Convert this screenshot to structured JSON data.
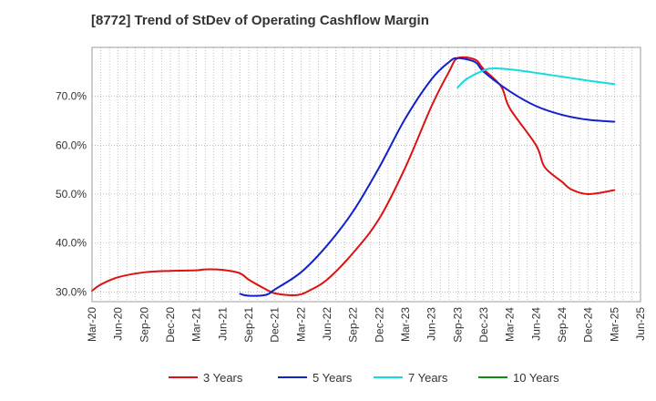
{
  "chart_data": {
    "type": "line",
    "title": "[8772]  Trend of StDev of Operating Cashflow Margin",
    "xlabel": "",
    "ylabel": "",
    "x_ticks": [
      "Mar-20",
      "Jun-20",
      "Sep-20",
      "Dec-20",
      "Mar-21",
      "Jun-21",
      "Sep-21",
      "Dec-21",
      "Mar-22",
      "Jun-22",
      "Sep-22",
      "Dec-22",
      "Mar-23",
      "Jun-23",
      "Sep-23",
      "Dec-23",
      "Mar-24",
      "Jun-24",
      "Sep-24",
      "Dec-24",
      "Mar-25",
      "Jun-25"
    ],
    "y_ticks": [
      "30.0%",
      "40.0%",
      "50.0%",
      "60.0%",
      "70.0%"
    ],
    "ylim": [
      28,
      80
    ],
    "grid": true,
    "legend_position": "bottom",
    "series": [
      {
        "name": "3 Years",
        "color": "#dd1111",
        "x": [
          "Mar-20",
          "Apr-20",
          "Jun-20",
          "Sep-20",
          "Dec-20",
          "Mar-21",
          "Apr-21",
          "Jun-21",
          "Aug-21",
          "Sep-21",
          "Nov-21",
          "Dec-21",
          "Feb-22",
          "Mar-22",
          "Apr-22",
          "Jun-22",
          "Sep-22",
          "Dec-22",
          "Mar-23",
          "Jun-23",
          "Aug-23",
          "Sep-23",
          "Nov-23",
          "Dec-23",
          "Feb-24",
          "Mar-24",
          "Jun-24",
          "Jul-24",
          "Sep-24",
          "Oct-24",
          "Dec-24",
          "Mar-25"
        ],
        "values": [
          30.2,
          31.5,
          33.0,
          34.0,
          34.3,
          34.4,
          34.6,
          34.5,
          33.8,
          32.5,
          30.5,
          29.7,
          29.3,
          29.5,
          30.3,
          32.5,
          38.0,
          45.0,
          55.5,
          68.0,
          75.0,
          77.8,
          77.5,
          75.5,
          72.0,
          67.5,
          60.0,
          55.5,
          52.5,
          51.0,
          50.0,
          50.8
        ]
      },
      {
        "name": "5 Years",
        "color": "#1122cc",
        "x": [
          "Aug-21",
          "Sep-21",
          "Nov-21",
          "Dec-21",
          "Mar-22",
          "Jun-22",
          "Sep-22",
          "Dec-22",
          "Mar-23",
          "Jun-23",
          "Aug-23",
          "Sep-23",
          "Nov-23",
          "Dec-23",
          "Mar-24",
          "Jun-24",
          "Sep-24",
          "Dec-24",
          "Mar-25"
        ],
        "values": [
          29.6,
          29.2,
          29.4,
          30.5,
          34.0,
          39.5,
          46.5,
          55.5,
          65.5,
          73.5,
          77.0,
          77.8,
          77.0,
          75.0,
          71.0,
          68.0,
          66.2,
          65.2,
          64.8
        ]
      },
      {
        "name": "7 Years",
        "color": "#11dddd",
        "x": [
          "Sep-23",
          "Oct-23",
          "Dec-23",
          "Jan-24",
          "Mar-24",
          "Jun-24",
          "Sep-24",
          "Dec-24",
          "Mar-25"
        ],
        "values": [
          71.8,
          73.5,
          75.3,
          75.7,
          75.5,
          74.8,
          74.0,
          73.2,
          72.5
        ]
      },
      {
        "name": "10 Years",
        "color": "#118811",
        "x": [],
        "values": []
      }
    ]
  }
}
